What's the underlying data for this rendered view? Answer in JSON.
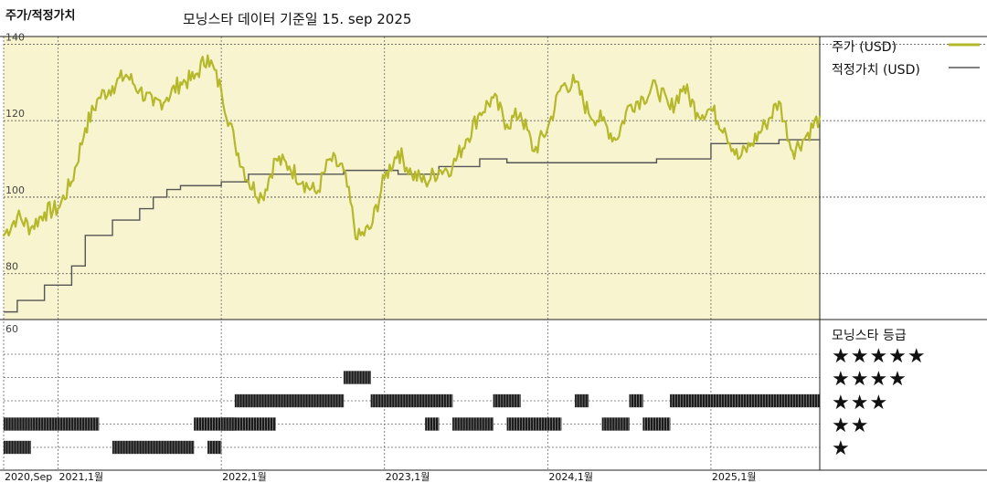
{
  "header": {
    "title": "주가/적정가치",
    "subtitle": "모닝스타 데이터 기준일 15. sep 2025"
  },
  "legend": {
    "price_label": "주가 (USD)",
    "fair_label": "적정가치 (USD)",
    "price_color": "#b5b82a",
    "fair_color": "#555555"
  },
  "rating_panel": {
    "heading": "모닝스타 등급",
    "rows": [
      "★★★★★",
      "★★★★",
      "★★★",
      "★★",
      "★"
    ]
  },
  "chart_data": {
    "type": "line",
    "x_tick_labels": [
      "2020,Sep",
      "2021,1월",
      "2022,1월",
      "2023,1월",
      "2024,1월",
      "2025,1월"
    ],
    "x_ticks": [
      "2020-09",
      "2021-01",
      "2022-01",
      "2023-01",
      "2024-01",
      "2025-01"
    ],
    "y_ticks": [
      80,
      100,
      120,
      140
    ],
    "lower_y_tick": 60,
    "ylim": [
      68,
      142
    ],
    "xlim": [
      "2020-09",
      "2025-09"
    ],
    "series": [
      {
        "name": "주가 (USD)",
        "color": "#b5b82a",
        "x": [
          "2020-09",
          "2020-10",
          "2020-11",
          "2020-12",
          "2021-01",
          "2021-02",
          "2021-03",
          "2021-04",
          "2021-05",
          "2021-06",
          "2021-07",
          "2021-08",
          "2021-09",
          "2021-10",
          "2021-11",
          "2021-12",
          "2022-01",
          "2022-02",
          "2022-03",
          "2022-04",
          "2022-05",
          "2022-06",
          "2022-07",
          "2022-08",
          "2022-09",
          "2022-10",
          "2022-11",
          "2022-12",
          "2023-01",
          "2023-02",
          "2023-03",
          "2023-04",
          "2023-05",
          "2023-06",
          "2023-07",
          "2023-08",
          "2023-09",
          "2023-10",
          "2023-11",
          "2023-12",
          "2024-01",
          "2024-02",
          "2024-03",
          "2024-04",
          "2024-05",
          "2024-06",
          "2024-07",
          "2024-08",
          "2024-09",
          "2024-10",
          "2024-11",
          "2024-12",
          "2025-01",
          "2025-02",
          "2025-03",
          "2025-04",
          "2025-05",
          "2025-06",
          "2025-07",
          "2025-08",
          "2025-09"
        ],
        "values": [
          90,
          95,
          92,
          96,
          97,
          104,
          118,
          126,
          129,
          132,
          128,
          124,
          126,
          130,
          131,
          137,
          128,
          114,
          104,
          100,
          110,
          108,
          104,
          101,
          110,
          107,
          89,
          92,
          105,
          112,
          106,
          104,
          107,
          108,
          115,
          122,
          126,
          119,
          122,
          112,
          118,
          129,
          130,
          122,
          120,
          115,
          124,
          126,
          129,
          123,
          129,
          122,
          123,
          118,
          110,
          114,
          119,
          125,
          112,
          116,
          121
        ]
      },
      {
        "name": "적정가치 (USD)",
        "color": "#555555",
        "x": [
          "2020-09",
          "2020-10",
          "2020-12",
          "2021-02",
          "2021-03",
          "2021-05",
          "2021-07",
          "2021-08",
          "2021-09",
          "2021-10",
          "2022-01",
          "2022-03",
          "2022-05",
          "2022-09",
          "2022-10",
          "2023-02",
          "2023-05",
          "2023-08",
          "2023-10",
          "2024-03",
          "2024-04",
          "2024-06",
          "2024-08",
          "2024-09",
          "2024-11",
          "2025-01",
          "2025-03",
          "2025-06",
          "2025-09"
        ],
        "values": [
          70,
          73,
          77,
          82,
          90,
          94,
          97,
          100,
          102,
          103,
          104,
          106,
          106,
          106,
          107,
          106,
          108,
          110,
          109,
          109,
          109,
          109,
          109,
          110,
          110,
          114,
          114,
          115,
          113
        ]
      }
    ],
    "rating_bands": {
      "levels": [
        1,
        2,
        3,
        4,
        5
      ],
      "segments": [
        {
          "stars": 2,
          "from": "2020-09",
          "to": "2020-11"
        },
        {
          "stars": 1,
          "from": "2020-09",
          "to": "2020-11"
        },
        {
          "stars": 2,
          "from": "2020-11",
          "to": "2021-04"
        },
        {
          "stars": 1,
          "from": "2021-05",
          "to": "2021-11"
        },
        {
          "stars": 2,
          "from": "2021-11",
          "to": "2022-05"
        },
        {
          "stars": 1,
          "from": "2021-12",
          "to": "2022-01"
        },
        {
          "stars": 2,
          "from": "2022-01",
          "to": "2022-02"
        },
        {
          "stars": 3,
          "from": "2022-02",
          "to": "2022-10"
        },
        {
          "stars": 4,
          "from": "2022-10",
          "to": "2022-12"
        },
        {
          "stars": 3,
          "from": "2022-12",
          "to": "2023-05"
        },
        {
          "stars": 3,
          "from": "2023-05",
          "to": "2023-06"
        },
        {
          "stars": 2,
          "from": "2023-04",
          "to": "2023-05"
        },
        {
          "stars": 2,
          "from": "2023-06",
          "to": "2023-09"
        },
        {
          "stars": 3,
          "from": "2023-09",
          "to": "2023-11"
        },
        {
          "stars": 2,
          "from": "2023-10",
          "to": "2024-02"
        },
        {
          "stars": 3,
          "from": "2024-03",
          "to": "2024-04"
        },
        {
          "stars": 2,
          "from": "2024-05",
          "to": "2024-07"
        },
        {
          "stars": 3,
          "from": "2024-07",
          "to": "2024-08"
        },
        {
          "stars": 2,
          "from": "2024-08",
          "to": "2024-10"
        },
        {
          "stars": 3,
          "from": "2024-10",
          "to": "2025-09"
        }
      ]
    }
  }
}
